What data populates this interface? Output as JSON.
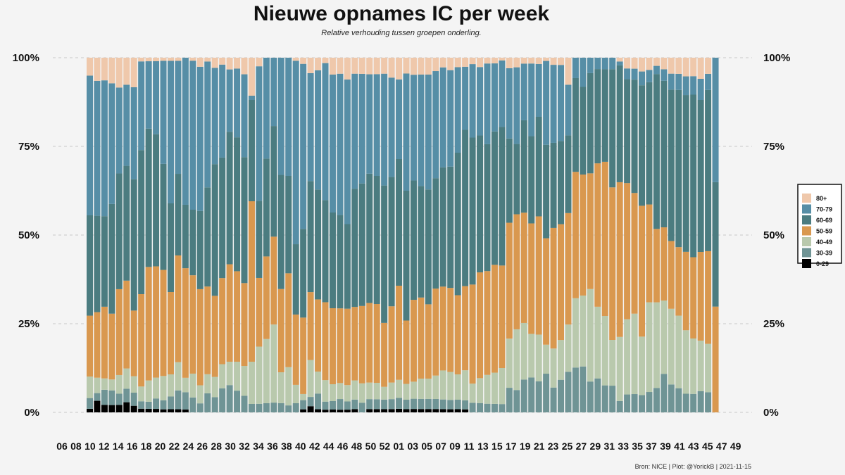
{
  "chart_data": {
    "type": "bar",
    "stacked": true,
    "normalized": true,
    "title": "Nieuwe opnames IC per week",
    "subtitle": "Relative verhouding tussen groepen onderling.",
    "caption": "Bron: NICE | Plot: @YorickB |  2021-11-15",
    "xlabel": "",
    "ylabel": "",
    "ylim": [
      0,
      100
    ],
    "y_ticks": [
      "0%",
      "25%",
      "50%",
      "75%",
      "100%"
    ],
    "y_tick_values": [
      0,
      25,
      50,
      75,
      100
    ],
    "grid": true,
    "legend_position": "right",
    "x_tick_labels": [
      "06",
      "08",
      "10",
      "12",
      "14",
      "16",
      "18",
      "20",
      "22",
      "24",
      "26",
      "28",
      "30",
      "32",
      "34",
      "36",
      "38",
      "40",
      "42",
      "44",
      "46",
      "48",
      "50",
      "52",
      "01",
      "03",
      "05",
      "07",
      "09",
      "11",
      "13",
      "15",
      "17",
      "19",
      "21",
      "23",
      "25",
      "27",
      "29",
      "31",
      "33",
      "35",
      "37",
      "39",
      "41",
      "43",
      "45",
      "47",
      "49"
    ],
    "colors": {
      "0-29": "#000000",
      "30-39": "#6f9495",
      "40-49": "#b9c9ad",
      "50-59": "#d9984f",
      "60-69": "#4b7c80",
      "70-79": "#568ea6",
      "80+": "#efc8ab",
      "background": "#f4f4f4",
      "grid": "#c8c8c8"
    },
    "series": [
      {
        "name": "80+",
        "values": [
          5,
          6,
          6,
          7,
          8,
          8,
          9,
          1,
          1,
          1,
          1,
          1,
          1,
          0,
          1,
          3,
          1,
          2,
          2,
          3,
          3,
          5,
          9,
          3,
          0,
          0,
          0,
          0,
          1,
          2,
          5,
          4,
          2,
          6,
          6,
          8,
          5,
          5,
          5,
          5,
          5,
          6,
          6,
          5,
          5,
          5,
          5,
          4,
          3,
          4,
          3,
          3,
          2,
          3,
          2,
          2,
          1,
          3,
          3,
          2,
          2,
          2,
          1,
          2,
          2,
          8,
          0,
          0,
          0,
          0,
          0,
          0,
          1,
          3,
          3,
          4,
          3,
          2,
          3,
          4,
          4,
          5,
          5,
          5,
          4,
          0
        ]
      },
      {
        "name": "70-79",
        "values": [
          39,
          35,
          36,
          33,
          23,
          24,
          28,
          24,
          19,
          21,
          34,
          45,
          36,
          51,
          50,
          48,
          33,
          19,
          27,
          16,
          19,
          25,
          1,
          47,
          33,
          21,
          38,
          34,
          60,
          54,
          35,
          38,
          51,
          49,
          53,
          53,
          36,
          34,
          30,
          31,
          35,
          30,
          22,
          37,
          31,
          33,
          34,
          32,
          31,
          31,
          27,
          21,
          23,
          22,
          28,
          24,
          24,
          20,
          24,
          19,
          25,
          17,
          26,
          22,
          21,
          15,
          5,
          7,
          4,
          3,
          3,
          3,
          1,
          3,
          3,
          4,
          3,
          2,
          3,
          4,
          4,
          5,
          5,
          5,
          4,
          40
        ]
      },
      {
        "name": "60-69",
        "values": [
          28,
          25,
          24,
          30,
          31,
          34,
          40,
          39,
          39,
          38,
          35,
          28,
          26,
          22,
          22,
          26,
          26,
          26,
          35,
          34,
          37,
          38,
          24,
          27,
          32,
          34,
          37,
          28,
          23,
          29,
          36,
          35,
          38,
          34,
          35,
          31,
          37,
          38,
          39,
          39,
          43,
          39,
          35,
          41,
          35,
          33,
          34,
          33,
          37,
          39,
          45,
          52,
          46,
          44,
          44,
          47,
          50,
          24,
          22,
          31,
          30,
          32,
          29,
          24,
          23,
          23,
          23,
          21,
          26,
          25,
          24,
          31,
          31,
          29,
          31,
          35,
          30,
          38,
          38,
          38,
          39,
          42,
          44,
          36,
          40,
          40
        ]
      },
      {
        "name": "50-59",
        "values": [
          17,
          17,
          19,
          18,
          23,
          26,
          20,
          25,
          32,
          32,
          35,
          26,
          34,
          38,
          33,
          32,
          23,
          16,
          25,
          25,
          25,
          25,
          38,
          24,
          27,
          27,
          27,
          27,
          23,
          25,
          22,
          23,
          29,
          27,
          28,
          28,
          23,
          24,
          24,
          24,
          20,
          23,
          26,
          20,
          24,
          24,
          22,
          26,
          26,
          27,
          25,
          28,
          31,
          34,
          36,
          38,
          37,
          33,
          36,
          37,
          38,
          38,
          33,
          34,
          32,
          33,
          31,
          29,
          30,
          38,
          40,
          40,
          41,
          38,
          33,
          38,
          24,
          18,
          19,
          17,
          17,
          21,
          22,
          21,
          23,
          34
        ]
      },
      {
        "name": "40-49",
        "values": [
          6,
          4,
          3,
          3,
          5,
          6,
          5,
          4,
          6,
          6,
          8,
          7,
          9,
          5,
          8,
          6,
          5,
          4,
          7,
          6,
          8,
          9,
          10,
          20,
          21,
          24,
          10,
          11,
          6,
          2,
          12,
          7,
          8,
          6,
          6,
          6,
          6,
          6,
          5,
          5,
          4,
          5,
          5,
          5,
          5,
          6,
          6,
          7,
          9,
          9,
          8,
          10,
          6,
          8,
          10,
          11,
          13,
          14,
          19,
          19,
          15,
          15,
          9,
          11,
          11,
          14,
          17,
          17,
          24,
          19,
          18,
          12,
          17,
          21,
          22,
          17,
          22,
          21,
          19,
          19,
          18,
          17,
          15,
          12,
          12,
          0
        ]
      },
      {
        "name": "30-39",
        "values": [
          3,
          2,
          4,
          4,
          3,
          4,
          4,
          2,
          2,
          3,
          3,
          4,
          6,
          6,
          5,
          3,
          5,
          3,
          7,
          7,
          6,
          5,
          2,
          3,
          3,
          3,
          3,
          2,
          3,
          3,
          3,
          5,
          3,
          3,
          4,
          3,
          3,
          3,
          3,
          3,
          3,
          3,
          3,
          3,
          3,
          3,
          3,
          3,
          3,
          3,
          3,
          3,
          3,
          3,
          3,
          3,
          3,
          7,
          7,
          11,
          12,
          10,
          12,
          7,
          9,
          12,
          11,
          11,
          8,
          9,
          7,
          7,
          3,
          5,
          5,
          5,
          5,
          6,
          10,
          7,
          6,
          5,
          5,
          5,
          5,
          0
        ]
      },
      {
        "name": "0-29",
        "values": [
          1,
          3,
          2,
          2,
          2,
          3,
          2,
          1,
          1,
          1,
          1,
          1,
          1,
          1,
          0,
          0,
          0,
          0,
          0,
          0,
          0,
          0,
          0,
          0,
          0,
          0,
          0,
          0,
          0,
          1,
          2,
          1,
          1,
          1,
          1,
          1,
          1,
          0,
          1,
          1,
          1,
          1,
          1,
          1,
          1,
          1,
          1,
          1,
          1,
          1,
          1,
          1,
          0,
          0,
          0,
          0,
          0,
          0,
          0,
          0,
          0,
          0,
          0,
          0,
          0,
          0,
          0,
          0,
          0,
          0,
          0,
          0,
          0,
          0,
          0,
          0,
          0,
          0,
          0,
          0,
          0,
          0,
          0,
          0,
          0,
          0
        ]
      }
    ]
  }
}
